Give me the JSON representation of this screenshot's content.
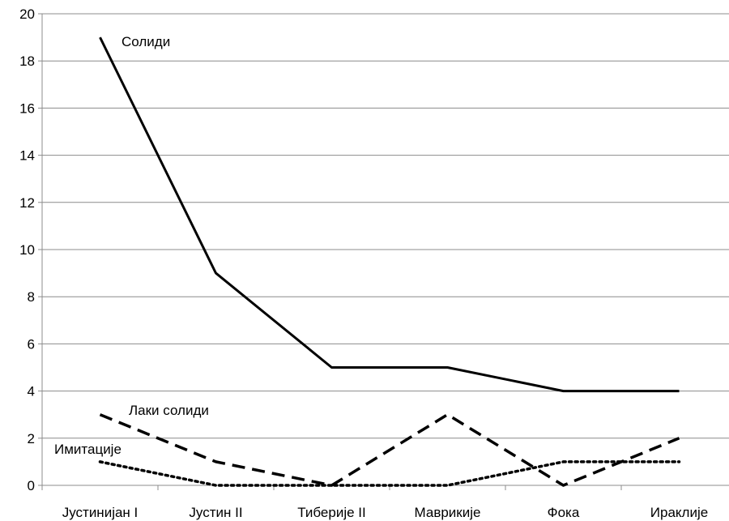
{
  "chart_data": {
    "type": "line",
    "title": "",
    "xlabel": "",
    "ylabel": "",
    "categories": [
      "Јустинијан I",
      "Јустин II",
      "Тиберије II",
      "Маврикије",
      "Фока",
      "Ираклије"
    ],
    "ylim": [
      0,
      20
    ],
    "yticks": [
      0,
      2,
      4,
      6,
      8,
      10,
      12,
      14,
      16,
      18,
      20
    ],
    "grid": "horizontal",
    "legend": "none",
    "series": [
      {
        "name": "Солиди",
        "values": [
          19,
          9,
          5,
          5,
          4,
          4
        ],
        "style": "solid",
        "color": "#000000"
      },
      {
        "name": "Лаки солиди",
        "values": [
          3,
          1,
          0,
          3,
          0,
          2
        ],
        "style": "dashed",
        "color": "#000000"
      },
      {
        "name": "Имитације",
        "values": [
          1,
          0,
          0,
          0,
          1,
          1
        ],
        "style": "dotted",
        "color": "#000000"
      }
    ]
  }
}
